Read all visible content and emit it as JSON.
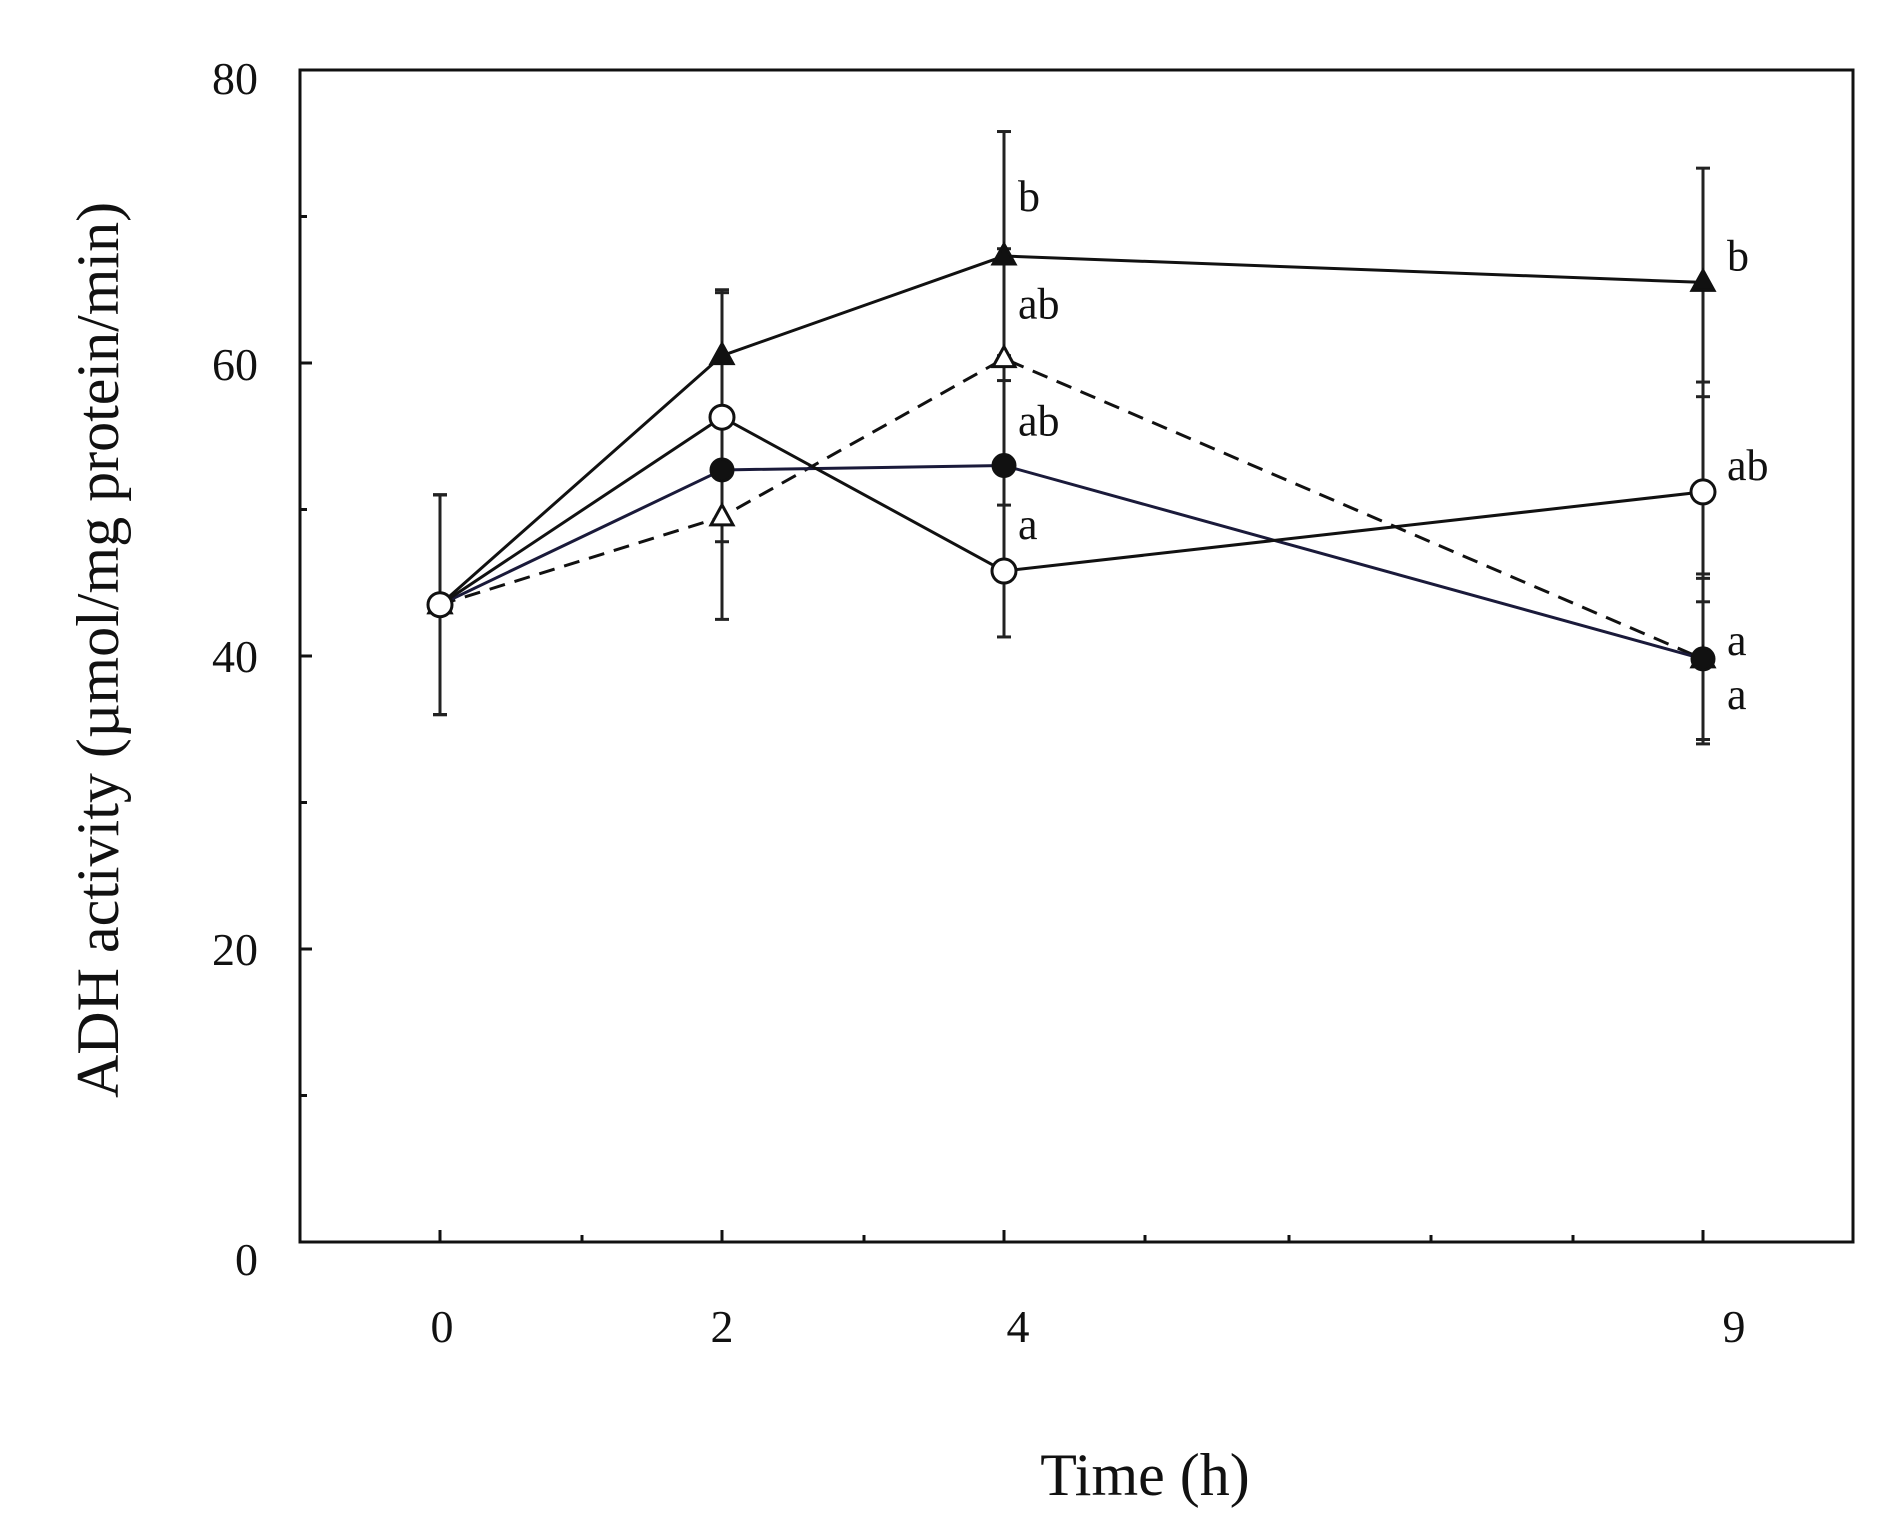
{
  "chart_data": {
    "type": "line",
    "title": "",
    "xlabel": "Time (h)",
    "ylabel": "ADH activity (µmol/mg protein/min)",
    "x": [
      0,
      2,
      4,
      9
    ],
    "x_tick_labels": [
      "0",
      "2",
      "4",
      "9"
    ],
    "ylim": [
      0,
      80
    ],
    "y_ticks": [
      0,
      20,
      40,
      60,
      80
    ],
    "y_tick_labels": [
      "0",
      "20",
      "40",
      "60",
      "80"
    ],
    "grid": false,
    "series": [
      {
        "name": "filled-triangle",
        "marker": "triangle",
        "filled": true,
        "dashed": false,
        "values": [
          43.5,
          60.5,
          67.3,
          65.5
        ],
        "errors": [
          7.5,
          4.5,
          8.5,
          7.8
        ],
        "labels": [
          "",
          "",
          "b",
          "b"
        ]
      },
      {
        "name": "open-triangle",
        "marker": "triangle",
        "filled": false,
        "dashed": true,
        "values": [
          43.5,
          49.5,
          60.3,
          39.8
        ],
        "errors": [
          7.5,
          7.0,
          7.5,
          5.8
        ],
        "labels": [
          "",
          "",
          "ab",
          "a"
        ]
      },
      {
        "name": "filled-circle",
        "marker": "circle",
        "filled": true,
        "dashed": false,
        "values": [
          43.5,
          52.7,
          53.0,
          39.8
        ],
        "errors": [
          7.5,
          3.5,
          7.5,
          5.5
        ],
        "labels": [
          "",
          "",
          "ab",
          "a"
        ]
      },
      {
        "name": "open-circle",
        "marker": "circle",
        "filled": false,
        "dashed": false,
        "values": [
          43.5,
          56.3,
          45.8,
          51.2
        ],
        "errors": [
          7.5,
          8.5,
          4.5,
          7.5
        ],
        "labels": [
          "",
          "",
          "a",
          "ab"
        ]
      }
    ]
  }
}
